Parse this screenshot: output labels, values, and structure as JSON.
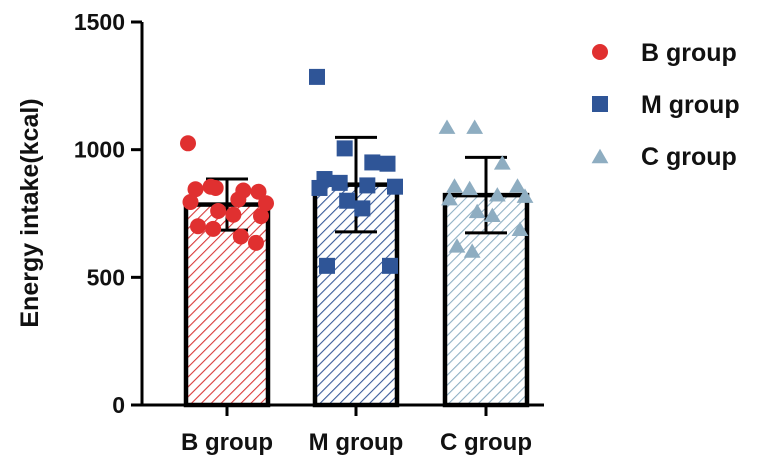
{
  "chart_data": {
    "type": "bar",
    "ylabel": "Energy intake(kcal)",
    "xlabel": "",
    "ylim": [
      0,
      1500
    ],
    "yticks": [
      0,
      500,
      1000,
      1500
    ],
    "categories": [
      "B group",
      "M group",
      "C group"
    ],
    "legend_position": "right",
    "series": [
      {
        "name": "B group",
        "marker": "circle",
        "color": "#e03030",
        "hatch_color": "#d93a3a",
        "mean": 785,
        "sd": 100,
        "points": [
          1025,
          850,
          840,
          835,
          845,
          855,
          805,
          790,
          795,
          760,
          745,
          740,
          700,
          690,
          660,
          635
        ]
      },
      {
        "name": "M group",
        "marker": "square",
        "color": "#2f5597",
        "hatch_color": "#3a5b9a",
        "mean": 863,
        "sd": 185,
        "points": [
          1285,
          1005,
          950,
          945,
          885,
          870,
          860,
          855,
          850,
          800,
          770,
          545,
          545
        ]
      },
      {
        "name": "C group",
        "marker": "triangle",
        "color": "#8eadc1",
        "hatch_color": "#8fb0c4",
        "mean": 822,
        "sd": 148,
        "points": [
          1090,
          1090,
          950,
          860,
          860,
          850,
          825,
          820,
          810,
          760,
          745,
          690,
          625,
          605
        ]
      }
    ]
  }
}
